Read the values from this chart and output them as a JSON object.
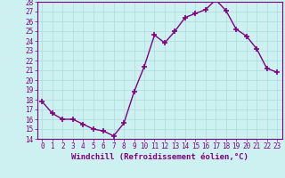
{
  "x": [
    0,
    1,
    2,
    3,
    4,
    5,
    6,
    7,
    8,
    9,
    10,
    11,
    12,
    13,
    14,
    15,
    16,
    17,
    18,
    19,
    20,
    21,
    22,
    23
  ],
  "y": [
    17.8,
    16.6,
    16.0,
    16.0,
    15.5,
    15.0,
    14.8,
    14.3,
    15.6,
    18.8,
    21.4,
    24.6,
    23.8,
    25.0,
    26.4,
    26.8,
    27.2,
    28.2,
    27.1,
    25.2,
    24.5,
    23.2,
    21.2,
    20.8
  ],
  "xlabel": "Windchill (Refroidissement éolien,°C)",
  "ylim": [
    14,
    28
  ],
  "xlim_min": -0.5,
  "xlim_max": 23.5,
  "yticks": [
    14,
    15,
    16,
    17,
    18,
    19,
    20,
    21,
    22,
    23,
    24,
    25,
    26,
    27,
    28
  ],
  "xticks": [
    0,
    1,
    2,
    3,
    4,
    5,
    6,
    7,
    8,
    9,
    10,
    11,
    12,
    13,
    14,
    15,
    16,
    17,
    18,
    19,
    20,
    21,
    22,
    23
  ],
  "line_color": "#800080",
  "marker": "+",
  "marker_size": 4,
  "line_width": 1.0,
  "bg_color": "#cdf0f0",
  "grid_color": "#aadddd",
  "label_color": "#800080",
  "tick_color": "#800080",
  "axis_color": "#800080",
  "xlabel_fontsize": 6.5,
  "tick_fontsize": 5.5
}
